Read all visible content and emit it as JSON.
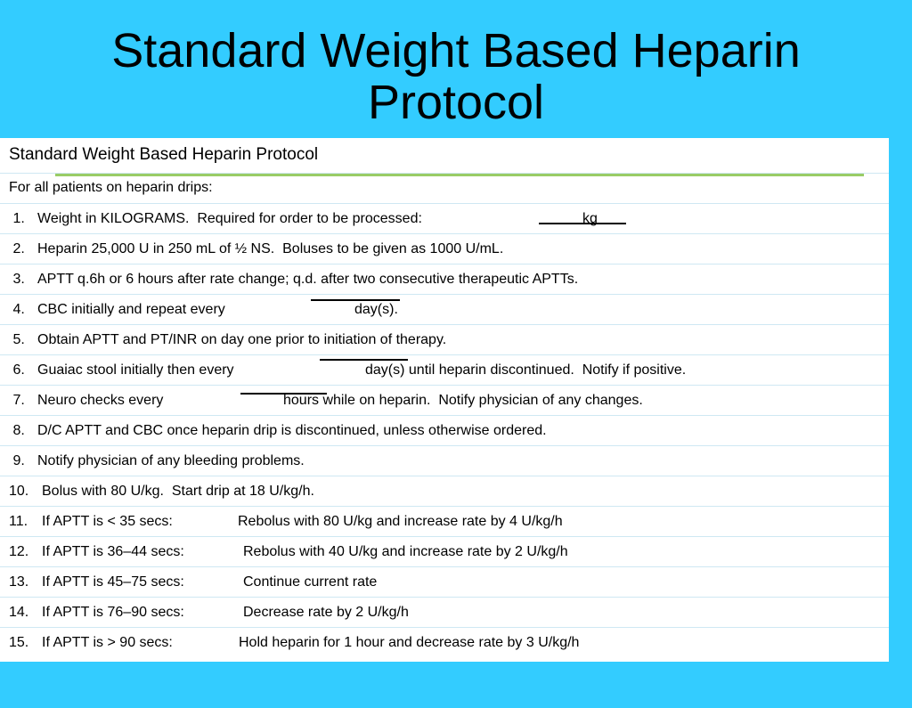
{
  "slide": {
    "title_line1": "Standard Weight Based Heparin",
    "title_line2": "Protocol"
  },
  "table": {
    "header": "Standard Weight Based Heparin Protocol",
    "intro": "For all patients on heparin drips:",
    "items": [
      {
        "num": " 1.",
        "text": "Weight in KILOGRAMS.  Required for order to be processed:",
        "after": "kg"
      },
      {
        "num": " 2.",
        "text": "Heparin 25,000 U in 250 mL of ½ NS.  Boluses to be given as 1000 U/mL."
      },
      {
        "num": " 3.",
        "text": "APTT q.6h or 6 hours after rate change; q.d. after two consecutive therapeutic APTTs."
      },
      {
        "num": " 4.",
        "text": "CBC initially and repeat every",
        "after": "day(s)."
      },
      {
        "num": " 5.",
        "text": "Obtain APTT and PT/INR on day one prior to initiation of therapy."
      },
      {
        "num": " 6.",
        "text": "Guaiac stool initially then every",
        "after": "day(s) until heparin discontinued.  Notify if positive."
      },
      {
        "num": " 7.",
        "text": "Neuro checks every",
        "after": "hours while on heparin.  Notify physician of any changes."
      },
      {
        "num": " 8.",
        "text": "D/C APTT and CBC once heparin drip is discontinued, unless otherwise ordered."
      },
      {
        "num": " 9.",
        "text": "Notify physician of any bleeding problems."
      },
      {
        "num": "10.",
        "text": "Bolus with 80 U/kg.  Start drip at 18 U/kg/h."
      },
      {
        "num": "11.",
        "text": "If APTT is < 35 secs:",
        "action": "Rebolus with 80 U/kg and increase rate by 4 U/kg/h"
      },
      {
        "num": "12.",
        "text": "If APTT is 36–44 secs:",
        "action": "Rebolus with 40 U/kg and increase rate by 2 U/kg/h"
      },
      {
        "num": "13.",
        "text": "If APTT is 45–75 secs:",
        "action": "Continue current rate"
      },
      {
        "num": "14.",
        "text": "If APTT is 76–90 secs:",
        "action": "Decrease rate by 2 U/kg/h"
      },
      {
        "num": "15.",
        "text": "If APTT is > 90 secs:",
        "action": "Hold heparin for 1 hour and decrease rate by 3 U/kg/h"
      }
    ]
  },
  "colors": {
    "background": "#33ccff",
    "rule": "#99cc66",
    "table_bg": "#ffffff"
  }
}
